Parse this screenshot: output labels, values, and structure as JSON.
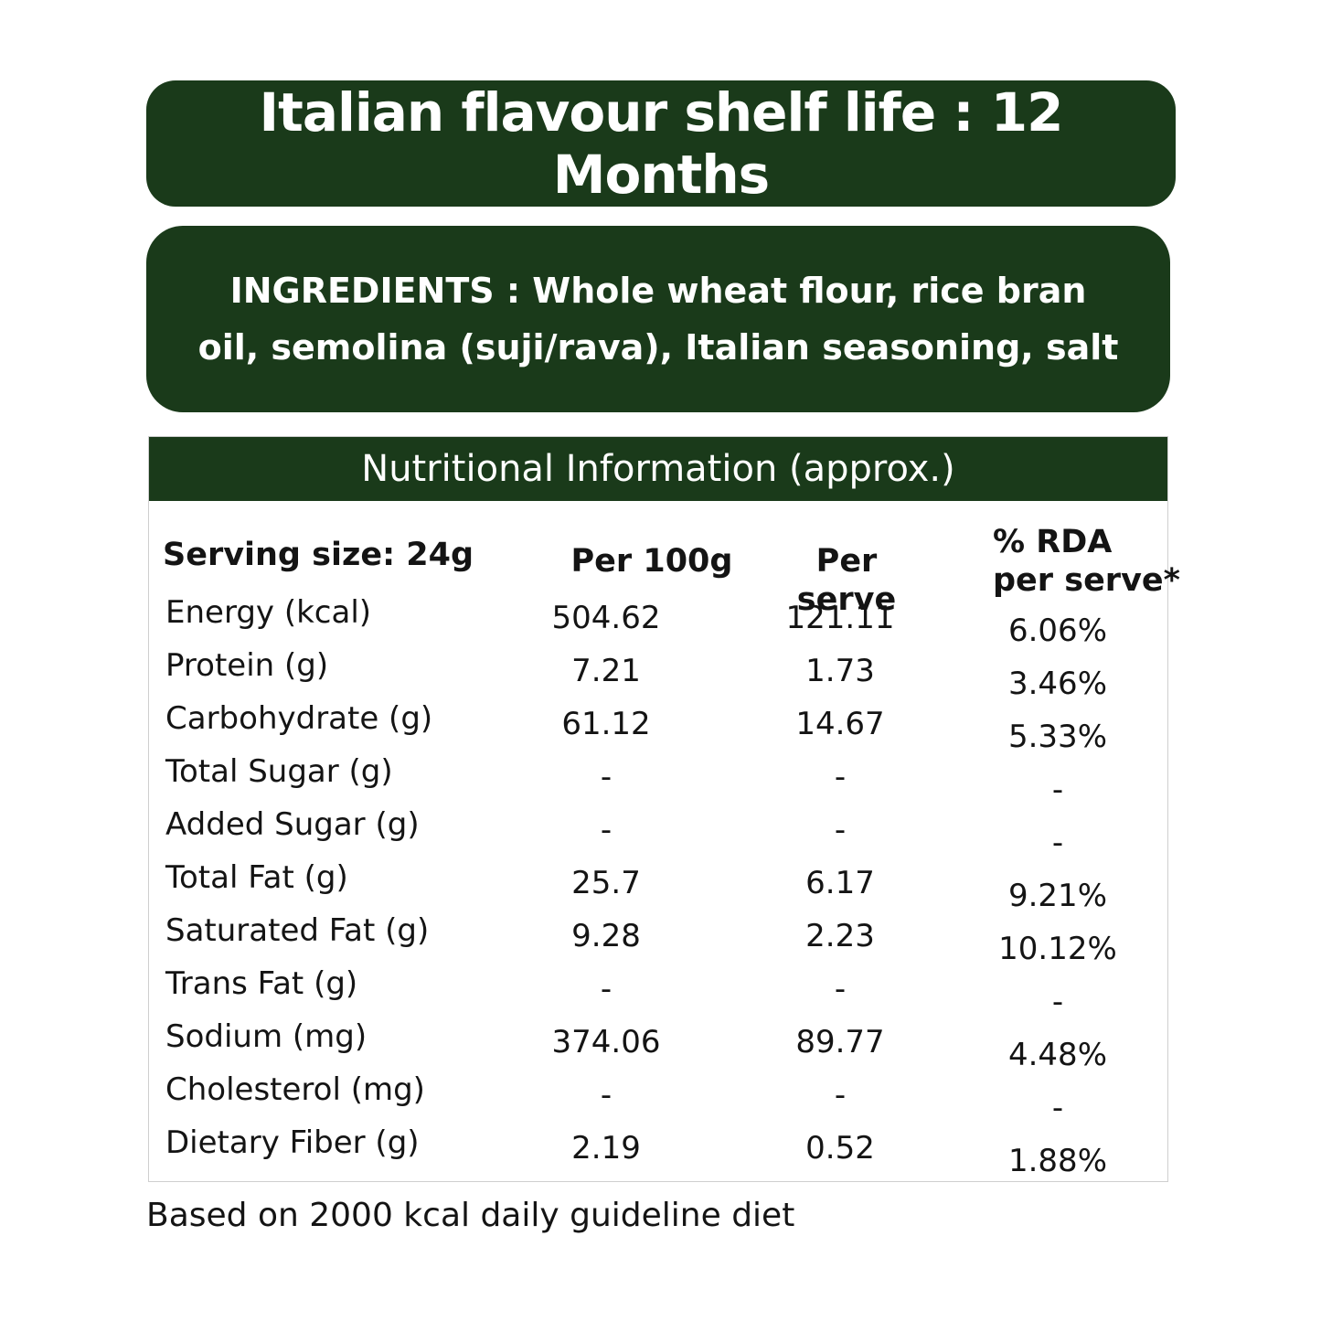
{
  "shelf_life": "Italian flavour shelf life : 12 Months",
  "ingredients": {
    "line1": "INGREDIENTS : Whole wheat flour, rice bran",
    "line2": "oil, semolina (suji/rava), Italian seasoning, salt"
  },
  "nutrition": {
    "header": "Nutritional Information (approx.)",
    "columns": {
      "serving": "Serving size: 24g",
      "per100": "Per 100g",
      "perserve": "Per serve",
      "rda_line1": "% RDA",
      "rda_line2": "per serve*"
    },
    "rows": [
      {
        "label": "Energy (kcal)",
        "per100": "504.62",
        "perserve": "121.11",
        "rda": "6.06%"
      },
      {
        "label": "Protein (g)",
        "per100": "7.21",
        "perserve": "1.73",
        "rda": "3.46%"
      },
      {
        "label": "Carbohydrate (g)",
        "per100": "61.12",
        "perserve": "14.67",
        "rda": "5.33%"
      },
      {
        "label": "Total Sugar (g)",
        "per100": "-",
        "perserve": "-",
        "rda": "-"
      },
      {
        "label": "Added Sugar (g)",
        "per100": "-",
        "perserve": "-",
        "rda": "-"
      },
      {
        "label": "Total Fat (g)",
        "per100": "25.7",
        "perserve": "6.17",
        "rda": "9.21%"
      },
      {
        "label": "Saturated Fat (g)",
        "per100": "9.28",
        "perserve": "2.23",
        "rda": "10.12%"
      },
      {
        "label": "Trans Fat (g)",
        "per100": "-",
        "perserve": "-",
        "rda": "-"
      },
      {
        "label": "Sodium (mg)",
        "per100": "374.06",
        "perserve": "89.77",
        "rda": "4.48%"
      },
      {
        "label": "Cholesterol (mg)",
        "per100": "-",
        "perserve": "-",
        "rda": "-"
      },
      {
        "label": "Dietary Fiber (g)",
        "per100": "2.19",
        "perserve": "0.52",
        "rda": "1.88%"
      }
    ]
  },
  "footnote": "Based on 2000 kcal daily guideline diet",
  "colors": {
    "banner_green": "#1a3a1a",
    "text": "#141414"
  }
}
